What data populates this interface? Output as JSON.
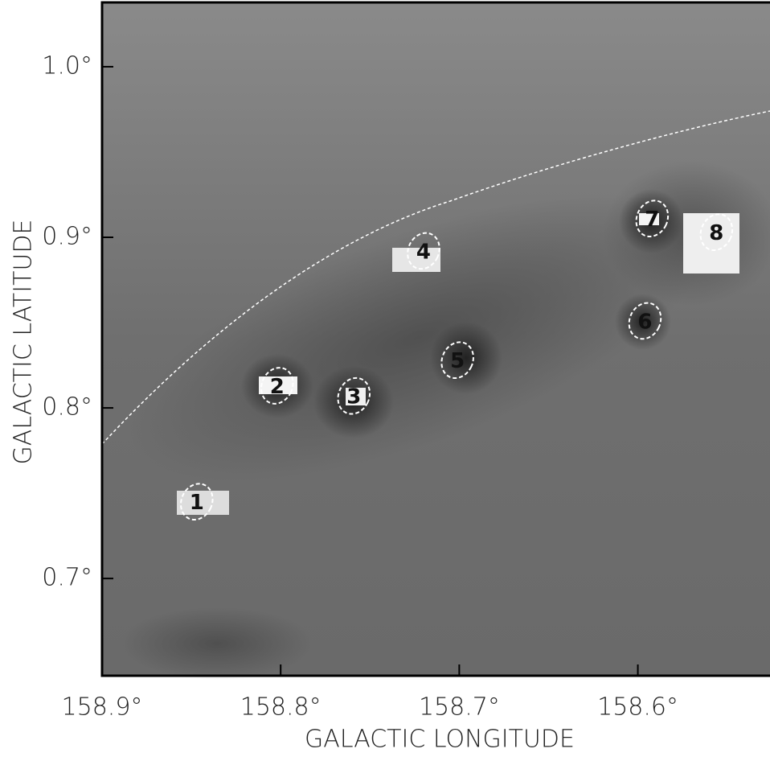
{
  "chart_data": {
    "type": "image",
    "xlabel": "GALACTIC LONGITUDE",
    "ylabel": "GALACTIC LATITUDE",
    "xlim": [
      158.9,
      158.526
    ],
    "ylim": [
      0.643,
      1.0377
    ],
    "xticks": [
      {
        "value": 158.9,
        "label": "158.9°"
      },
      {
        "value": 158.8,
        "label": "158.8°"
      },
      {
        "value": 158.7,
        "label": "158.7°"
      },
      {
        "value": 158.6,
        "label": "158.6°"
      }
    ],
    "yticks": [
      {
        "value": 0.7,
        "label": "0.7°"
      },
      {
        "value": 0.8,
        "label": "0.8°"
      },
      {
        "value": 0.9,
        "label": "0.9°"
      },
      {
        "value": 1.0,
        "label": "1.0°"
      }
    ],
    "sources": [
      {
        "label": "1",
        "lon": 158.847,
        "lat": 0.745
      },
      {
        "label": "2",
        "lon": 158.802,
        "lat": 0.813
      },
      {
        "label": "3",
        "lon": 158.759,
        "lat": 0.807
      },
      {
        "label": "4",
        "lon": 158.72,
        "lat": 0.892
      },
      {
        "label": "5",
        "lon": 158.701,
        "lat": 0.828
      },
      {
        "label": "6",
        "lon": 158.596,
        "lat": 0.851
      },
      {
        "label": "7",
        "lon": 158.592,
        "lat": 0.911
      },
      {
        "label": "8",
        "lon": 158.556,
        "lat": 0.903
      }
    ]
  }
}
